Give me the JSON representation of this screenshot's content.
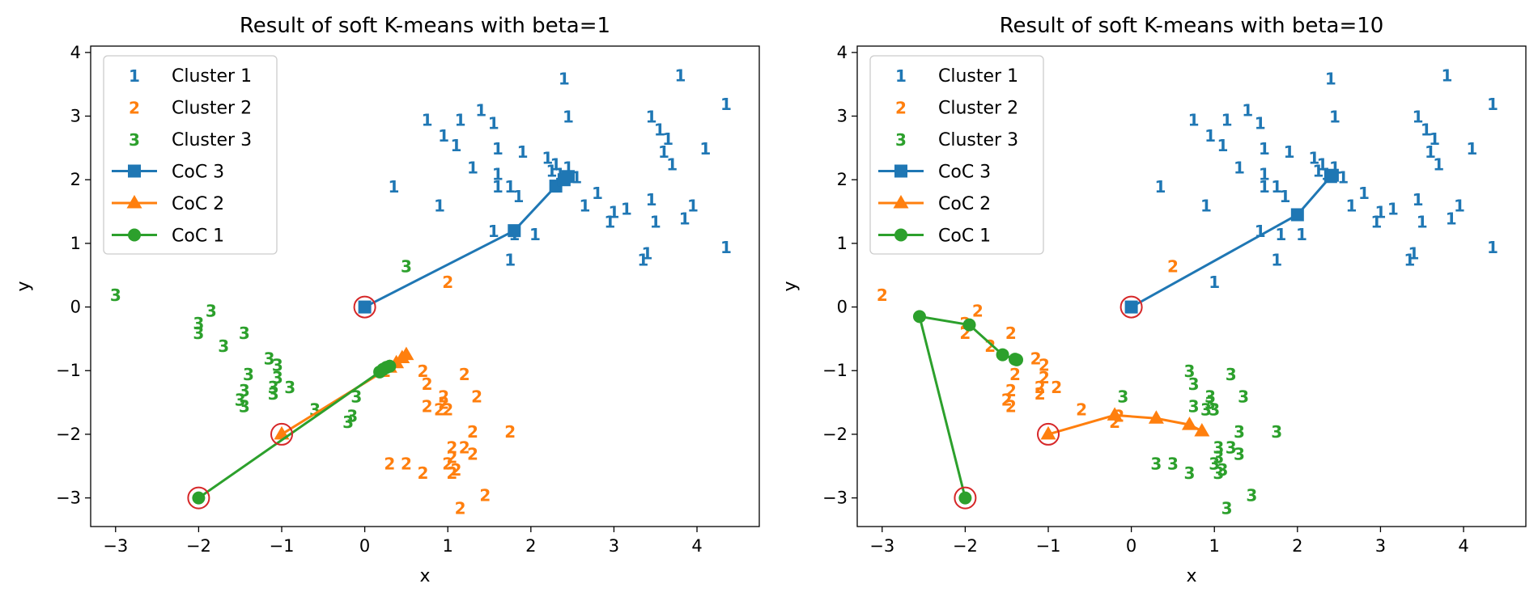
{
  "chart_data": [
    {
      "type": "scatter",
      "title": "Result of soft K-means with beta=1",
      "xlabel": "x",
      "ylabel": "y",
      "xlim": [
        -3.3,
        4.75
      ],
      "ylim": [
        -3.45,
        4.1
      ],
      "xticks": [
        -3,
        -2,
        -1,
        0,
        1,
        2,
        3,
        4
      ],
      "yticks": [
        -3,
        -2,
        -1,
        0,
        1,
        2,
        3,
        4
      ],
      "xtick_labels": [
        "−3",
        "−2",
        "−1",
        "0",
        "1",
        "2",
        "3",
        "4"
      ],
      "ytick_labels": [
        "−3",
        "−2",
        "−1",
        "0",
        "1",
        "2",
        "3",
        "4"
      ],
      "grid": false,
      "legend_position": "upper-left",
      "legend": [
        {
          "label": "Cluster 1",
          "kind": "marker-text",
          "text": "1",
          "color": "#1f77b4"
        },
        {
          "label": "Cluster 2",
          "kind": "marker-text",
          "text": "2",
          "color": "#ff7f0e"
        },
        {
          "label": "Cluster 3",
          "kind": "marker-text",
          "text": "3",
          "color": "#2ca02c"
        },
        {
          "label": "CoC 3",
          "kind": "line",
          "marker": "square",
          "color": "#1f77b4"
        },
        {
          "label": "CoC 2",
          "kind": "line",
          "marker": "triangle",
          "color": "#ff7f0e"
        },
        {
          "label": "CoC 1",
          "kind": "line",
          "marker": "circle",
          "color": "#2ca02c"
        }
      ],
      "point_series": [
        {
          "label": "1",
          "color": "#1f77b4",
          "points": [
            [
              2.4,
              3.6
            ],
            [
              3.8,
              3.65
            ],
            [
              4.35,
              3.2
            ],
            [
              2.45,
              3.0
            ],
            [
              3.45,
              3.0
            ],
            [
              3.55,
              2.8
            ],
            [
              3.65,
              2.65
            ],
            [
              0.75,
              2.95
            ],
            [
              0.95,
              2.7
            ],
            [
              1.1,
              2.55
            ],
            [
              1.15,
              2.95
            ],
            [
              1.4,
              3.1
            ],
            [
              1.55,
              2.9
            ],
            [
              1.6,
              2.5
            ],
            [
              1.9,
              2.45
            ],
            [
              2.2,
              2.35
            ],
            [
              2.3,
              2.25
            ],
            [
              2.45,
              2.2
            ],
            [
              2.25,
              2.15
            ],
            [
              2.35,
              2.1
            ],
            [
              2.55,
              2.05
            ],
            [
              3.6,
              2.45
            ],
            [
              3.7,
              2.25
            ],
            [
              4.1,
              2.5
            ],
            [
              1.3,
              2.2
            ],
            [
              1.6,
              2.1
            ],
            [
              1.6,
              1.9
            ],
            [
              1.75,
              1.9
            ],
            [
              1.85,
              1.75
            ],
            [
              0.35,
              1.9
            ],
            [
              0.9,
              1.6
            ],
            [
              2.65,
              1.6
            ],
            [
              2.8,
              1.8
            ],
            [
              3.0,
              1.5
            ],
            [
              3.15,
              1.55
            ],
            [
              3.45,
              1.7
            ],
            [
              3.5,
              1.35
            ],
            [
              3.85,
              1.4
            ],
            [
              3.95,
              1.6
            ],
            [
              2.95,
              1.35
            ],
            [
              1.55,
              1.2
            ],
            [
              1.8,
              1.15
            ],
            [
              2.05,
              1.15
            ],
            [
              1.75,
              0.75
            ],
            [
              3.35,
              0.75
            ],
            [
              3.4,
              0.85
            ],
            [
              4.35,
              0.95
            ]
          ]
        },
        {
          "label": "2",
          "color": "#ff7f0e",
          "points": [
            [
              1.0,
              0.4
            ],
            [
              0.7,
              -1.0
            ],
            [
              1.2,
              -1.05
            ],
            [
              0.75,
              -1.2
            ],
            [
              0.25,
              -1.0
            ],
            [
              0.95,
              -1.4
            ],
            [
              1.35,
              -1.4
            ],
            [
              0.75,
              -1.55
            ],
            [
              0.95,
              -1.5
            ],
            [
              1.0,
              -1.6
            ],
            [
              0.9,
              -1.6
            ],
            [
              1.3,
              -1.95
            ],
            [
              1.75,
              -1.95
            ],
            [
              1.05,
              -2.2
            ],
            [
              1.2,
              -2.2
            ],
            [
              1.3,
              -2.3
            ],
            [
              1.05,
              -2.35
            ],
            [
              0.3,
              -2.45
            ],
            [
              0.5,
              -2.45
            ],
            [
              1.0,
              -2.45
            ],
            [
              1.1,
              -2.55
            ],
            [
              0.7,
              -2.6
            ],
            [
              1.05,
              -2.6
            ],
            [
              1.45,
              -2.95
            ],
            [
              1.15,
              -3.15
            ]
          ]
        },
        {
          "label": "3",
          "color": "#2ca02c",
          "points": [
            [
              -3.0,
              0.2
            ],
            [
              0.5,
              0.65
            ],
            [
              -1.85,
              -0.05
            ],
            [
              -2.0,
              -0.25
            ],
            [
              -2.0,
              -0.4
            ],
            [
              -1.45,
              -0.4
            ],
            [
              -1.7,
              -0.6
            ],
            [
              -1.15,
              -0.8
            ],
            [
              -1.05,
              -0.9
            ],
            [
              -1.4,
              -1.05
            ],
            [
              -1.05,
              -1.1
            ],
            [
              -1.1,
              -1.25
            ],
            [
              -0.9,
              -1.25
            ],
            [
              -1.45,
              -1.3
            ],
            [
              -1.1,
              -1.35
            ],
            [
              -1.5,
              -1.45
            ],
            [
              -0.1,
              -1.4
            ],
            [
              -1.45,
              -1.55
            ],
            [
              -0.6,
              -1.6
            ],
            [
              -0.15,
              -1.7
            ],
            [
              -0.2,
              -1.8
            ]
          ]
        }
      ],
      "coc_series": [
        {
          "name": "CoC 3",
          "color": "#1f77b4",
          "marker": "square",
          "points": [
            [
              0.0,
              0.0
            ],
            [
              1.8,
              1.2
            ],
            [
              2.3,
              1.9
            ],
            [
              2.4,
              2.0
            ],
            [
              2.45,
              2.05
            ]
          ]
        },
        {
          "name": "CoC 2",
          "color": "#ff7f0e",
          "marker": "triangle",
          "points": [
            [
              -1.0,
              -2.0
            ],
            [
              0.3,
              -0.95
            ],
            [
              0.38,
              -0.88
            ],
            [
              0.45,
              -0.8
            ],
            [
              0.5,
              -0.75
            ]
          ]
        },
        {
          "name": "CoC 1",
          "color": "#2ca02c",
          "marker": "circle",
          "points": [
            [
              -2.0,
              -3.0
            ],
            [
              0.18,
              -1.02
            ],
            [
              0.22,
              -0.98
            ],
            [
              0.26,
              -0.95
            ],
            [
              0.3,
              -0.93
            ]
          ]
        }
      ],
      "initial_centers": [
        [
          0.0,
          0.0
        ],
        [
          -1.0,
          -2.0
        ],
        [
          -2.0,
          -3.0
        ]
      ]
    },
    {
      "type": "scatter",
      "title": "Result of soft K-means with beta=10",
      "xlabel": "x",
      "ylabel": "y",
      "xlim": [
        -3.3,
        4.75
      ],
      "ylim": [
        -3.45,
        4.1
      ],
      "xticks": [
        -3,
        -2,
        -1,
        0,
        1,
        2,
        3,
        4
      ],
      "yticks": [
        -3,
        -2,
        -1,
        0,
        1,
        2,
        3,
        4
      ],
      "xtick_labels": [
        "−3",
        "−2",
        "−1",
        "0",
        "1",
        "2",
        "3",
        "4"
      ],
      "ytick_labels": [
        "−3",
        "−2",
        "−1",
        "0",
        "1",
        "2",
        "3",
        "4"
      ],
      "grid": false,
      "legend_position": "upper-left",
      "legend": [
        {
          "label": "Cluster 1",
          "kind": "marker-text",
          "text": "1",
          "color": "#1f77b4"
        },
        {
          "label": "Cluster 2",
          "kind": "marker-text",
          "text": "2",
          "color": "#ff7f0e"
        },
        {
          "label": "Cluster 3",
          "kind": "marker-text",
          "text": "3",
          "color": "#2ca02c"
        },
        {
          "label": "CoC 3",
          "kind": "line",
          "marker": "square",
          "color": "#1f77b4"
        },
        {
          "label": "CoC 2",
          "kind": "line",
          "marker": "triangle",
          "color": "#ff7f0e"
        },
        {
          "label": "CoC 1",
          "kind": "line",
          "marker": "circle",
          "color": "#2ca02c"
        }
      ],
      "point_series": [
        {
          "label": "1",
          "color": "#1f77b4",
          "points": [
            [
              2.4,
              3.6
            ],
            [
              3.8,
              3.65
            ],
            [
              4.35,
              3.2
            ],
            [
              2.45,
              3.0
            ],
            [
              3.45,
              3.0
            ],
            [
              3.55,
              2.8
            ],
            [
              3.65,
              2.65
            ],
            [
              0.75,
              2.95
            ],
            [
              0.95,
              2.7
            ],
            [
              1.1,
              2.55
            ],
            [
              1.15,
              2.95
            ],
            [
              1.4,
              3.1
            ],
            [
              1.55,
              2.9
            ],
            [
              1.6,
              2.5
            ],
            [
              1.9,
              2.45
            ],
            [
              2.2,
              2.35
            ],
            [
              2.3,
              2.25
            ],
            [
              2.45,
              2.2
            ],
            [
              2.25,
              2.15
            ],
            [
              2.35,
              2.1
            ],
            [
              2.55,
              2.05
            ],
            [
              3.6,
              2.45
            ],
            [
              3.7,
              2.25
            ],
            [
              4.1,
              2.5
            ],
            [
              1.3,
              2.2
            ],
            [
              1.6,
              2.1
            ],
            [
              1.6,
              1.9
            ],
            [
              1.75,
              1.9
            ],
            [
              1.85,
              1.75
            ],
            [
              0.35,
              1.9
            ],
            [
              0.9,
              1.6
            ],
            [
              2.65,
              1.6
            ],
            [
              2.8,
              1.8
            ],
            [
              3.0,
              1.5
            ],
            [
              3.15,
              1.55
            ],
            [
              3.45,
              1.7
            ],
            [
              3.5,
              1.35
            ],
            [
              3.85,
              1.4
            ],
            [
              3.95,
              1.6
            ],
            [
              2.95,
              1.35
            ],
            [
              1.55,
              1.2
            ],
            [
              1.8,
              1.15
            ],
            [
              2.05,
              1.15
            ],
            [
              1.75,
              0.75
            ],
            [
              3.35,
              0.75
            ],
            [
              3.4,
              0.85
            ],
            [
              4.35,
              0.95
            ],
            [
              1.0,
              0.4
            ]
          ]
        },
        {
          "label": "2",
          "color": "#ff7f0e",
          "points": [
            [
              0.5,
              0.65
            ],
            [
              -3.0,
              0.2
            ],
            [
              -1.85,
              -0.05
            ],
            [
              -2.0,
              -0.25
            ],
            [
              -2.0,
              -0.4
            ],
            [
              -1.45,
              -0.4
            ],
            [
              -1.7,
              -0.6
            ],
            [
              -1.15,
              -0.8
            ],
            [
              -1.05,
              -0.9
            ],
            [
              -1.4,
              -1.05
            ],
            [
              -1.05,
              -1.1
            ],
            [
              -1.1,
              -1.25
            ],
            [
              -0.9,
              -1.25
            ],
            [
              -1.45,
              -1.3
            ],
            [
              -1.1,
              -1.35
            ],
            [
              -1.5,
              -1.45
            ],
            [
              -0.6,
              -1.6
            ],
            [
              -1.45,
              -1.55
            ],
            [
              -0.15,
              -1.7
            ],
            [
              -0.2,
              -1.8
            ]
          ]
        },
        {
          "label": "3",
          "color": "#2ca02c",
          "points": [
            [
              -0.1,
              -1.4
            ],
            [
              0.7,
              -1.0
            ],
            [
              1.2,
              -1.05
            ],
            [
              0.75,
              -1.2
            ],
            [
              0.95,
              -1.4
            ],
            [
              1.35,
              -1.4
            ],
            [
              0.75,
              -1.55
            ],
            [
              0.95,
              -1.5
            ],
            [
              1.0,
              -1.6
            ],
            [
              0.9,
              -1.6
            ],
            [
              1.3,
              -1.95
            ],
            [
              1.75,
              -1.95
            ],
            [
              1.05,
              -2.2
            ],
            [
              1.2,
              -2.2
            ],
            [
              1.3,
              -2.3
            ],
            [
              1.05,
              -2.35
            ],
            [
              0.3,
              -2.45
            ],
            [
              0.5,
              -2.45
            ],
            [
              1.0,
              -2.45
            ],
            [
              1.1,
              -2.55
            ],
            [
              0.7,
              -2.6
            ],
            [
              1.05,
              -2.6
            ],
            [
              1.45,
              -2.95
            ],
            [
              1.15,
              -3.15
            ]
          ]
        }
      ],
      "coc_series": [
        {
          "name": "CoC 3",
          "color": "#1f77b4",
          "marker": "square",
          "points": [
            [
              0.0,
              0.0
            ],
            [
              2.0,
              1.45
            ],
            [
              2.4,
              2.05
            ],
            [
              2.42,
              2.07
            ]
          ]
        },
        {
          "name": "CoC 2",
          "color": "#ff7f0e",
          "marker": "triangle",
          "points": [
            [
              -1.0,
              -2.0
            ],
            [
              -0.2,
              -1.7
            ],
            [
              0.3,
              -1.75
            ],
            [
              0.7,
              -1.85
            ],
            [
              0.85,
              -1.95
            ]
          ]
        },
        {
          "name": "CoC 1",
          "color": "#2ca02c",
          "marker": "circle",
          "points": [
            [
              -2.0,
              -3.0
            ],
            [
              -2.55,
              -0.15
            ],
            [
              -1.95,
              -0.28
            ],
            [
              -1.55,
              -0.75
            ],
            [
              -1.4,
              -0.82
            ],
            [
              -1.38,
              -0.83
            ]
          ]
        }
      ],
      "initial_centers": [
        [
          0.0,
          0.0
        ],
        [
          -1.0,
          -2.0
        ],
        [
          -2.0,
          -3.0
        ]
      ]
    }
  ]
}
